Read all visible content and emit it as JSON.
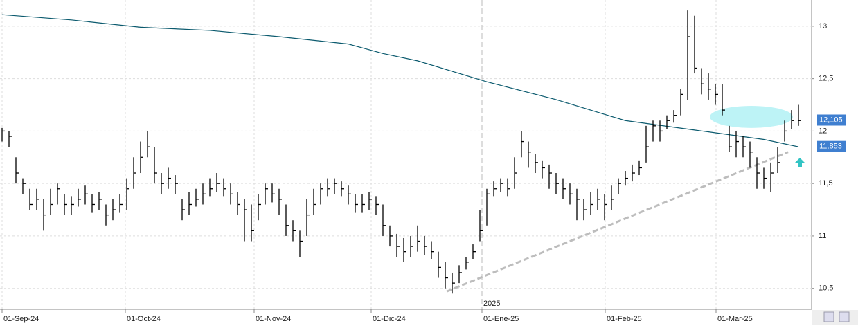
{
  "chart_data": {
    "type": "ohlc",
    "x": [
      0,
      1,
      2,
      3,
      4,
      5,
      6,
      7,
      8,
      9,
      10,
      11,
      12,
      13,
      14,
      15,
      16,
      17,
      18,
      19,
      20,
      21,
      22,
      23,
      24,
      25,
      26,
      27,
      28,
      29,
      30,
      31,
      32,
      33,
      34,
      35,
      36,
      37,
      38,
      39,
      40,
      41,
      42,
      43,
      44,
      45,
      46,
      47,
      48,
      49,
      50,
      51,
      52,
      53,
      54,
      55,
      56,
      57,
      58,
      59,
      60,
      61,
      62,
      63,
      64,
      65,
      66,
      67,
      68,
      69,
      70,
      71,
      72,
      73,
      74,
      75,
      76,
      77,
      78,
      79,
      80,
      81,
      82,
      83,
      84,
      85,
      86,
      87,
      88,
      89,
      90,
      91,
      92,
      93,
      94,
      95,
      96,
      97,
      98,
      99,
      100,
      101,
      102,
      103,
      104,
      105,
      106,
      107,
      108,
      109,
      110,
      111,
      112,
      113,
      114,
      115
    ],
    "close": [
      12.0,
      11.95,
      11.6,
      11.5,
      11.3,
      11.35,
      11.2,
      11.3,
      11.45,
      11.3,
      11.3,
      11.35,
      11.4,
      11.3,
      11.35,
      11.2,
      11.25,
      11.3,
      11.45,
      11.6,
      11.75,
      11.85,
      11.6,
      11.5,
      11.55,
      11.5,
      11.25,
      11.3,
      11.35,
      11.4,
      11.45,
      11.5,
      11.45,
      11.4,
      11.3,
      11.25,
      11.05,
      11.3,
      11.45,
      11.4,
      11.35,
      11.1,
      11.05,
      10.95,
      11.2,
      11.3,
      11.45,
      11.45,
      11.5,
      11.45,
      11.4,
      11.3,
      11.3,
      11.35,
      11.3,
      11.1,
      11.0,
      10.9,
      10.85,
      10.9,
      10.95,
      10.9,
      10.85,
      10.7,
      10.6,
      10.55,
      10.65,
      10.75,
      10.85,
      11.05,
      11.4,
      11.45,
      11.5,
      11.45,
      11.6,
      11.9,
      11.8,
      11.7,
      11.65,
      11.6,
      11.5,
      11.45,
      11.4,
      11.35,
      11.25,
      11.3,
      11.35,
      11.3,
      11.35,
      11.5,
      11.55,
      11.6,
      11.65,
      11.85,
      12.05,
      12.0,
      12.1,
      12.15,
      12.35,
      12.9,
      12.6,
      12.45,
      12.4,
      12.35,
      12.2,
      11.85,
      11.9,
      11.85,
      11.8,
      11.6,
      11.55,
      11.6,
      11.7,
      12.0,
      12.1,
      12.1
    ],
    "high": [
      12.03,
      12.0,
      11.75,
      11.55,
      11.45,
      11.45,
      11.35,
      11.45,
      11.5,
      11.4,
      11.38,
      11.45,
      11.48,
      11.4,
      11.42,
      11.3,
      11.35,
      11.4,
      11.55,
      11.75,
      11.9,
      12.0,
      11.85,
      11.6,
      11.65,
      11.58,
      11.35,
      11.42,
      11.45,
      11.5,
      11.55,
      11.6,
      11.55,
      11.5,
      11.42,
      11.35,
      11.3,
      11.4,
      11.5,
      11.5,
      11.45,
      11.3,
      11.15,
      11.05,
      11.35,
      11.45,
      11.5,
      11.55,
      11.55,
      11.52,
      11.48,
      11.4,
      11.4,
      11.42,
      11.38,
      11.3,
      11.1,
      11.02,
      10.98,
      11.0,
      11.1,
      11.0,
      10.95,
      10.85,
      10.75,
      10.65,
      10.72,
      10.8,
      10.92,
      11.25,
      11.45,
      11.52,
      11.55,
      11.55,
      11.75,
      12.0,
      11.9,
      11.78,
      11.72,
      11.68,
      11.6,
      11.55,
      11.5,
      11.45,
      11.35,
      11.42,
      11.45,
      11.4,
      11.48,
      11.55,
      11.62,
      11.68,
      11.72,
      12.05,
      12.1,
      12.1,
      12.15,
      12.2,
      12.4,
      13.15,
      13.1,
      12.6,
      12.55,
      12.45,
      12.45,
      12.05,
      12.0,
      11.95,
      11.9,
      11.75,
      11.65,
      11.7,
      11.85,
      12.1,
      12.2,
      12.25
    ],
    "low": [
      11.9,
      11.85,
      11.5,
      11.4,
      11.25,
      11.25,
      11.05,
      11.2,
      11.3,
      11.2,
      11.2,
      11.28,
      11.3,
      11.22,
      11.25,
      11.1,
      11.15,
      11.22,
      11.25,
      11.45,
      11.6,
      11.75,
      11.5,
      11.4,
      11.45,
      11.4,
      11.15,
      11.2,
      11.28,
      11.3,
      11.38,
      11.42,
      11.38,
      11.3,
      11.2,
      10.95,
      10.95,
      11.15,
      11.3,
      11.32,
      11.2,
      11.0,
      10.95,
      10.8,
      11.0,
      11.2,
      11.3,
      11.38,
      11.4,
      11.38,
      11.3,
      11.22,
      11.22,
      11.25,
      11.2,
      11.0,
      10.9,
      10.8,
      10.75,
      10.8,
      10.85,
      10.82,
      10.78,
      10.6,
      10.5,
      10.45,
      10.55,
      10.68,
      10.78,
      10.95,
      11.1,
      11.38,
      11.42,
      11.38,
      11.45,
      11.75,
      11.65,
      11.6,
      11.55,
      11.45,
      11.4,
      11.35,
      11.3,
      11.15,
      11.15,
      11.2,
      11.25,
      11.15,
      11.25,
      11.4,
      11.48,
      11.52,
      11.58,
      11.7,
      11.9,
      11.9,
      12.02,
      12.08,
      12.15,
      12.3,
      12.55,
      12.35,
      12.3,
      12.25,
      12.15,
      11.8,
      11.75,
      11.75,
      11.65,
      11.45,
      11.45,
      11.42,
      11.6,
      11.9,
      12.02,
      12.05
    ],
    "color": "#000000",
    "moving_average": {
      "x": [
        0,
        10,
        20,
        30,
        40,
        50,
        55,
        60,
        70,
        80,
        90,
        100,
        110,
        115
      ],
      "values": [
        13.11,
        13.06,
        12.99,
        12.96,
        12.9,
        12.83,
        12.74,
        12.67,
        12.47,
        12.3,
        12.1,
        12.01,
        11.92,
        11.85
      ],
      "color": "#0b5a6e"
    },
    "trendline": {
      "x": [
        64.2,
        113.5
      ],
      "values": [
        10.47,
        11.8
      ],
      "color": "#bdbdbd"
    },
    "highlight": {
      "x": [
        102.2,
        114.2
      ],
      "values": [
        12.03,
        12.24
      ],
      "color": "#bdf3f6"
    },
    "price_labels": [
      {
        "value": 12.105,
        "label": "12,105"
      },
      {
        "value": 11.853,
        "label": "11,853"
      }
    ],
    "year_label": "2025",
    "ylim": [
      10.3,
      13.25
    ],
    "yticks": [
      {
        "value": 10.5,
        "label": "10,5"
      },
      11,
      {
        "value": 11.5,
        "label": "11,5"
      },
      12,
      {
        "value": 12.5,
        "label": "12,5"
      },
      13
    ],
    "xlim": [
      -0.3,
      116.9
    ],
    "xticks": [
      {
        "value": 0,
        "label": "01-Sep-24"
      },
      {
        "value": 17.8,
        "label": "01-Oct-24"
      },
      {
        "value": 36.4,
        "label": "01-Nov-24"
      },
      {
        "value": 53.3,
        "label": "01-Dic-24"
      },
      {
        "value": 69.3,
        "label": "01-Ene-25"
      },
      {
        "value": 87.1,
        "label": "01-Feb-25"
      },
      {
        "value": 103.1,
        "label": "01-Mar-25"
      }
    ],
    "grid": true
  }
}
